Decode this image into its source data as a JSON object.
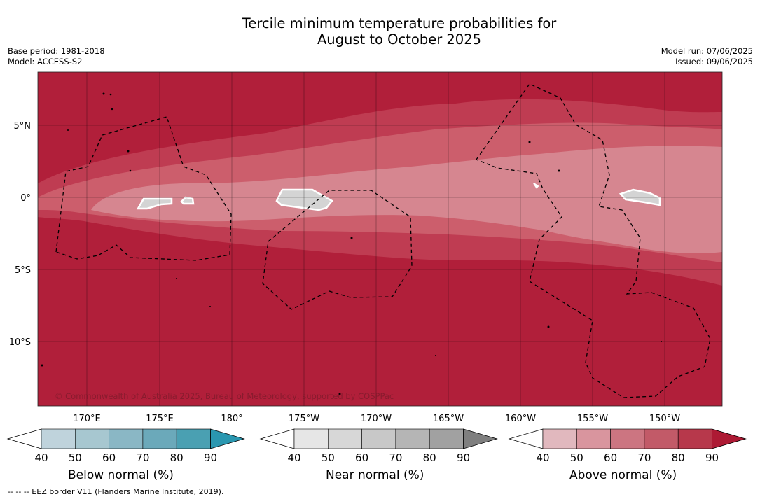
{
  "title_line1": "Tercile minimum temperature probabilities for",
  "title_line2": "August to October 2025",
  "meta_left": {
    "base_period": "Base period: 1981-2018",
    "model": "Model: ACCESS-S2"
  },
  "meta_right": {
    "model_run": "Model run: 07/06/2025",
    "issued": "Issued: 09/06/2025"
  },
  "map": {
    "lat_labels": [
      "5°N",
      "0°",
      "5°S",
      "10°S"
    ],
    "lon_labels": [
      "170°E",
      "175°E",
      "180°",
      "175°W",
      "170°W",
      "165°W",
      "160°W",
      "155°W",
      "150°W"
    ],
    "colors": {
      "above_90": "#b11f3a",
      "above_80": "#bf3c52",
      "above_70": "#cc5e6c",
      "above_60": "#d68690",
      "near_normal": "#d4d4d4"
    },
    "copyright": "© Commonwealth of Australia 2025, Bureau of Meteorology, supported by COSPPac"
  },
  "colorbars": [
    {
      "title": "Below normal (%)",
      "ticks": [
        "40",
        "50",
        "60",
        "70",
        "80",
        "90"
      ],
      "colors": [
        "#ffffff",
        "#bfd3dc",
        "#a7c7d0",
        "#8ab7c5",
        "#6ba9ba",
        "#4aa0b2",
        "#2a97b0"
      ]
    },
    {
      "title": "Near normal (%)",
      "ticks": [
        "40",
        "50",
        "60",
        "70",
        "80",
        "90"
      ],
      "colors": [
        "#ffffff",
        "#e6e6e6",
        "#d7d7d7",
        "#c8c8c8",
        "#b5b5b5",
        "#a1a1a1",
        "#7f7f7f"
      ]
    },
    {
      "title": "Above normal (%)",
      "ticks": [
        "40",
        "50",
        "60",
        "70",
        "80",
        "90"
      ],
      "colors": [
        "#ffffff",
        "#e1b8be",
        "#d9959e",
        "#cc7581",
        "#c25a68",
        "#b7384b",
        "#ad1a34"
      ]
    }
  ],
  "footnote": "--  --  -- EEZ border V11 (Flanders Marine Institute, 2019)."
}
